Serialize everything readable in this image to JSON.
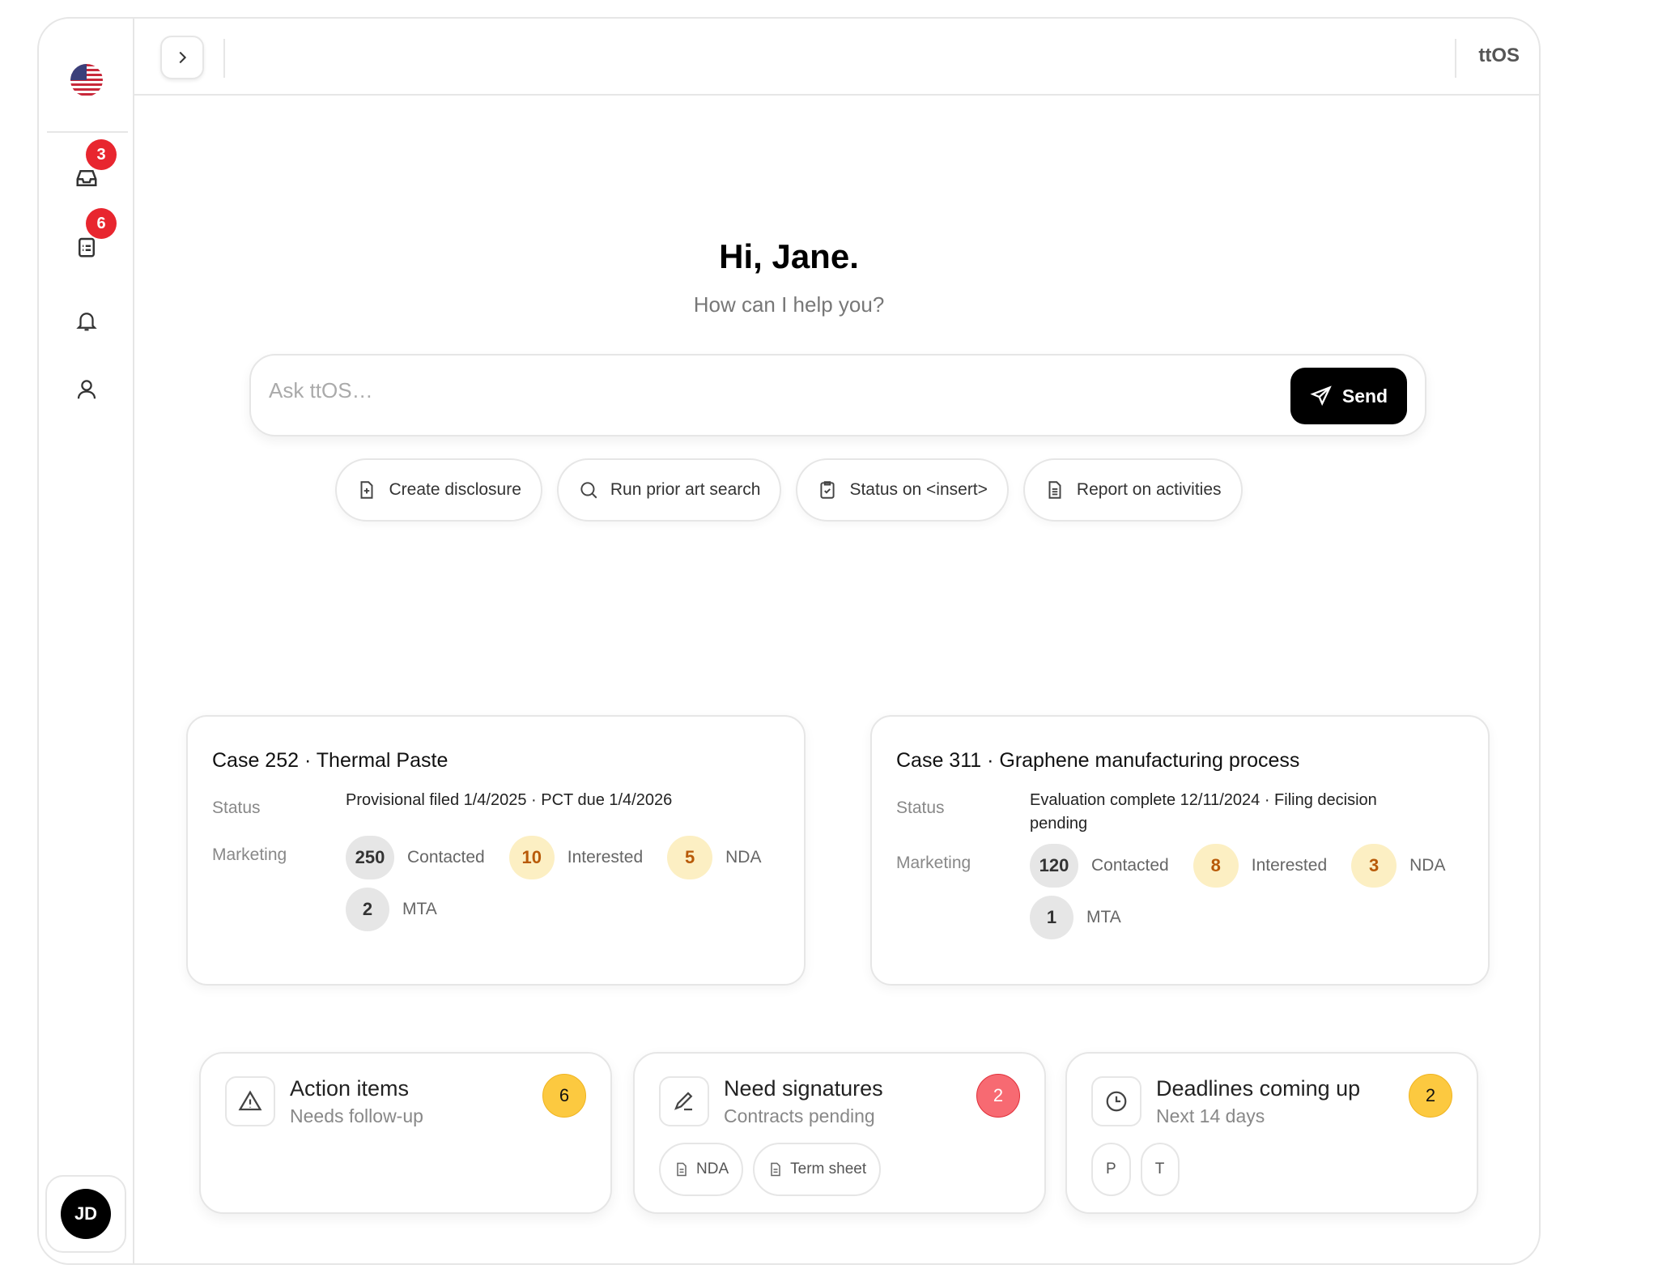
{
  "sidebar": {
    "inbox_badge": "3",
    "tasks_badge": "6",
    "avatar_initials": "JD"
  },
  "header": {
    "brand": "ttOS"
  },
  "greeting": {
    "title": "Hi, Jane.",
    "subtitle": "How can I help you?"
  },
  "ask": {
    "placeholder": "Ask ttOS…",
    "value": "",
    "send_label": "Send"
  },
  "chips": [
    {
      "label": "Create disclosure",
      "icon": "file-plus-icon"
    },
    {
      "label": "Run prior art search",
      "icon": "search-icon"
    },
    {
      "label": "Status on <insert>",
      "icon": "clipboard-check-icon"
    },
    {
      "label": "Report on activities",
      "icon": "file-text-icon"
    }
  ],
  "cases": [
    {
      "title": "Case 252 · Thermal Paste",
      "status_label": "Status",
      "status": "Provisional filed 1/4/2025 · PCT due 1/4/2026",
      "marketing_label": "Marketing",
      "metrics": [
        {
          "value": "250",
          "label": "Contacted"
        },
        {
          "value": "10",
          "label": "Interested"
        },
        {
          "value": "5",
          "label": "NDA"
        },
        {
          "value": "2",
          "label": "MTA"
        }
      ]
    },
    {
      "title": "Case 311 · Graphene manufacturing process",
      "status_label": "Status",
      "status": "Evaluation complete 12/11/2024 · Filing decision pending",
      "marketing_label": "Marketing",
      "metrics": [
        {
          "value": "120",
          "label": "Contacted"
        },
        {
          "value": "8",
          "label": "Interested"
        },
        {
          "value": "3",
          "label": "NDA"
        },
        {
          "value": "1",
          "label": "MTA"
        }
      ]
    }
  ],
  "cards": [
    {
      "title": "Action items",
      "subtitle": "Needs follow-up",
      "count": "6",
      "color": "#fcc940",
      "tags": []
    },
    {
      "title": "Need signatures",
      "subtitle": "Contracts pending",
      "count": "2",
      "color": "#f76a72",
      "tags": [
        "NDA",
        "Term sheet"
      ]
    },
    {
      "title": "Deadlines coming up",
      "subtitle": "Next 14 days",
      "count": "2",
      "color": "#fcc940",
      "tags": [
        "P",
        "T"
      ]
    }
  ]
}
